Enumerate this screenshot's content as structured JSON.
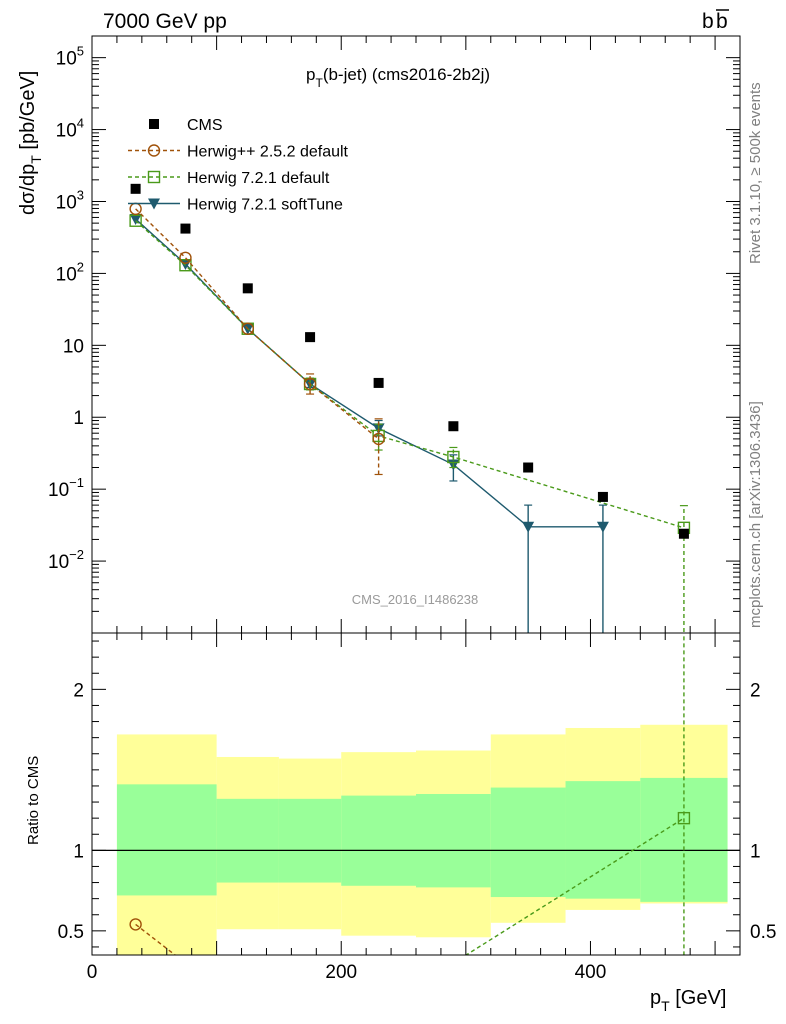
{
  "header": {
    "left": "7000 GeV pp",
    "right_main": "b",
    "right_bar": "b"
  },
  "side": {
    "rivet": "Rivet 3.1.10, ≥ 500k events",
    "mcplots": "mcplots.cern.ch [arXiv:1306.3436]"
  },
  "chart_data": [
    {
      "type": "scatter",
      "title_main": "p",
      "title_sub": "T",
      "title_rest": "(b-jet) (cms2016-2b2j)",
      "watermark": "CMS_2016_I1486238",
      "ylabel_main": "dσ/dp",
      "ylabel_sub": "T",
      "ylabel_unit": " [pb/GeV]",
      "yscale": "log",
      "xlim": [
        0,
        520
      ],
      "ylim": [
        0.001,
        200000
      ],
      "ytick_labels": [
        {
          "v": 0.01,
          "base": "10",
          "exp": "−2"
        },
        {
          "v": 0.1,
          "base": "10",
          "exp": "−1"
        },
        {
          "v": 1,
          "base": "1",
          "exp": ""
        },
        {
          "v": 10,
          "base": "10",
          "exp": ""
        },
        {
          "v": 100,
          "base": "10",
          "exp": "2"
        },
        {
          "v": 1000,
          "base": "10",
          "exp": "3"
        },
        {
          "v": 10000,
          "base": "10",
          "exp": "4"
        },
        {
          "v": 100000,
          "base": "10",
          "exp": "5"
        }
      ],
      "legend_position": "top-left",
      "series": [
        {
          "name": "CMS",
          "color": "#000000",
          "marker": "square-filled",
          "line": "none",
          "x": [
            35,
            75,
            125,
            175,
            230,
            290,
            350,
            410,
            475
          ],
          "y": [
            1500.0,
            420.0,
            62,
            13,
            3.0,
            0.75,
            0.2,
            0.078,
            0.024
          ]
        },
        {
          "name": "Herwig++ 2.5.2 default",
          "color": "#a0520a",
          "marker": "circle-open",
          "line": "dashed",
          "x": [
            35,
            75,
            125,
            175,
            230
          ],
          "y": [
            790.0,
            165.0,
            17,
            2.9,
            0.5
          ],
          "yerr_low": [
            0,
            0,
            0,
            0.8,
            0.34
          ],
          "yerr_high": [
            0,
            0,
            0,
            1.1,
            0.45
          ]
        },
        {
          "name": "Herwig 7.2.1 default",
          "color": "#4a9a1a",
          "marker": "square-open",
          "line": "dashed",
          "x": [
            35,
            75,
            125,
            175,
            230,
            290,
            475
          ],
          "y": [
            540.0,
            130.0,
            17,
            2.9,
            0.55,
            0.28,
            0.029
          ],
          "yerr_low": [
            0,
            0,
            0,
            0.5,
            0.2,
            0.08,
            0.03
          ],
          "yerr_high": [
            0,
            0,
            0,
            0.6,
            0.25,
            0.1,
            0.03
          ]
        },
        {
          "name": "Herwig 7.2.1 softTune",
          "color": "#1e5a6e",
          "marker": "triangle-down-filled",
          "line": "solid",
          "x": [
            35,
            75,
            125,
            175,
            230,
            290,
            350,
            410
          ],
          "y": [
            570.0,
            135.0,
            17,
            2.9,
            0.7,
            0.22,
            0.03,
            0.03
          ],
          "yerr_low": [
            0,
            0,
            0,
            0.3,
            0.15,
            0.09,
            0.03,
            0.03
          ],
          "yerr_high": [
            0,
            0,
            0,
            0.4,
            0.2,
            0.08,
            0.03,
            0.03
          ]
        }
      ]
    },
    {
      "type": "area",
      "ylabel": "Ratio to CMS",
      "xlabel_main": "p",
      "xlabel_sub": "T",
      "xlabel_unit": " [GeV]",
      "xlim": [
        0,
        520
      ],
      "ylim": [
        0.35,
        2.35
      ],
      "xticks": [
        0,
        200,
        400
      ],
      "yticks": [
        0.5,
        1,
        2
      ],
      "reference": 1,
      "bands": {
        "bin_edges": [
          20,
          100,
          150,
          200,
          260,
          320,
          380,
          440,
          510
        ],
        "yellow_low": [
          0.35,
          0.51,
          0.51,
          0.47,
          0.46,
          0.55,
          0.63,
          0.67
        ],
        "yellow_high": [
          1.72,
          1.58,
          1.57,
          1.61,
          1.62,
          1.72,
          1.76,
          1.78
        ],
        "green_low": [
          0.72,
          0.8,
          0.8,
          0.78,
          0.77,
          0.71,
          0.7,
          0.68
        ],
        "green_high": [
          1.41,
          1.32,
          1.32,
          1.34,
          1.35,
          1.39,
          1.43,
          1.45
        ]
      },
      "series": [
        {
          "name": "Herwig++ 2.5.2 default",
          "color": "#a0520a",
          "marker": "circle-open",
          "x": [
            35,
            75
          ],
          "y": [
            0.54,
            0.3
          ]
        },
        {
          "name": "Herwig 7.2.1 default",
          "color": "#4a9a1a",
          "marker": "square-open",
          "x": [
            290,
            475
          ],
          "y": [
            0.3,
            1.2
          ],
          "marker_from": 1,
          "err_x": 475,
          "err_low": 0.0,
          "err_high": 2.45
        }
      ]
    }
  ]
}
